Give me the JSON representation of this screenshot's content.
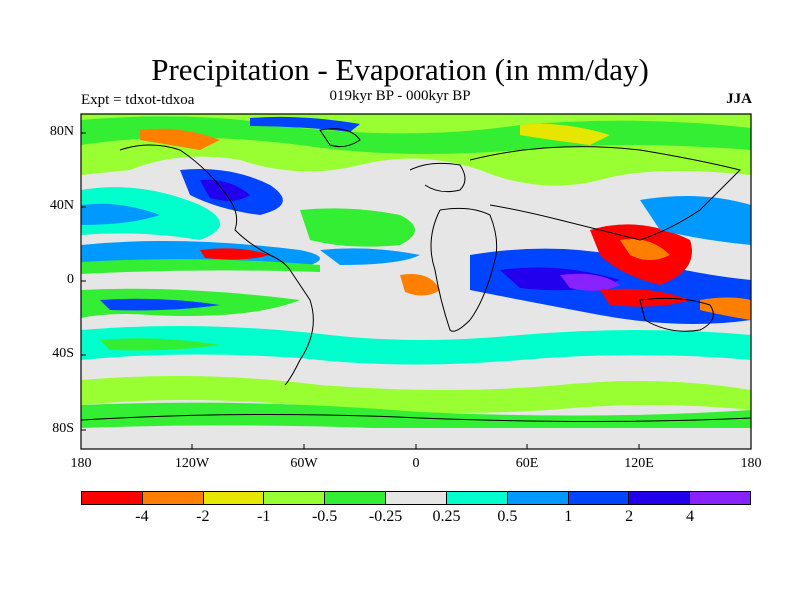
{
  "header": {
    "title": "Precipitation - Evaporation (in mm/day)",
    "subtitle": "019kyr BP - 000kyr BP",
    "experiment": "Expt = tdxot-tdxoa",
    "season": "JJA"
  },
  "axes": {
    "lat_labels": [
      "80N",
      "40N",
      "0",
      "40S",
      "80S"
    ],
    "lon_labels": [
      "180",
      "120W",
      "60W",
      "0",
      "60E",
      "120E",
      "180"
    ]
  },
  "colorbar": {
    "colors": [
      "#ff0000",
      "#ff8000",
      "#e6e600",
      "#99ff33",
      "#33ee33",
      "#e6e6e6",
      "#00ffcc",
      "#0099ff",
      "#0044ff",
      "#2200ee",
      "#8822ff"
    ],
    "labels": [
      "-4",
      "-2",
      "-1",
      "-0.5",
      "-0.25",
      "0.25",
      "0.5",
      "1",
      "2",
      "4"
    ]
  },
  "map_style": {
    "ocean_background": "#e6e6e6",
    "coastline_color": "#000000",
    "land_color": "#e6e6e6"
  }
}
